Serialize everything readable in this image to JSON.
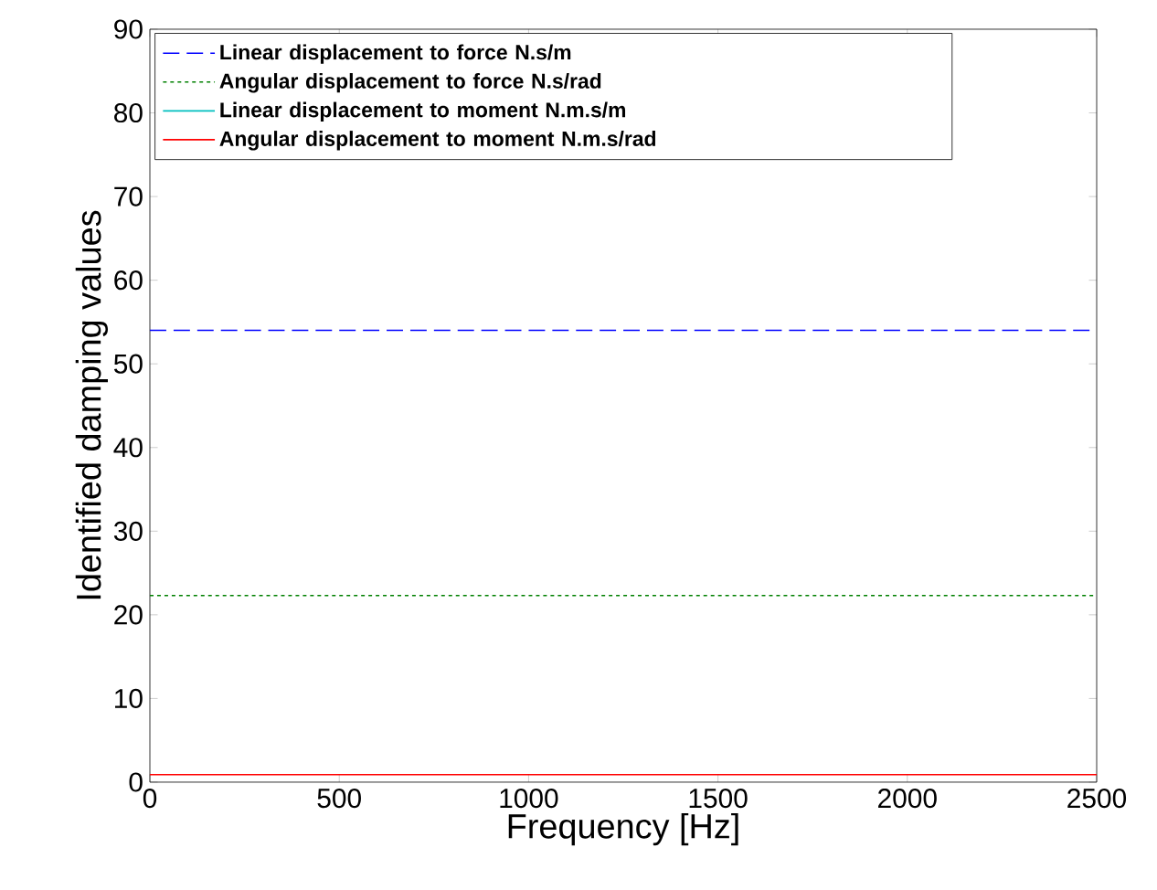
{
  "chart_data": {
    "type": "line",
    "xlabel": "Frequency [Hz]",
    "ylabel": "Identified damping values",
    "x": [
      0,
      2500
    ],
    "series": [
      {
        "name": "Linear displacement to force N.s/m",
        "color": "#0000ff",
        "line_style": "dashed",
        "values": [
          54,
          54
        ]
      },
      {
        "name": "Angular displacement to force N.s/rad",
        "color": "#008000",
        "line_style": "dotted",
        "values": [
          22.3,
          22.3
        ]
      },
      {
        "name": "Linear displacement to moment N.m.s/m",
        "color": "#00bfbf",
        "line_style": "solid",
        "values": [
          null,
          null
        ]
      },
      {
        "name": "Angular displacement to moment N.m.s/rad",
        "color": "#ff0000",
        "line_style": "solid",
        "values": [
          0.9,
          0.9
        ]
      }
    ],
    "xlim": [
      0,
      2500
    ],
    "xticks": [
      0,
      500,
      1000,
      1500,
      2000,
      2500
    ],
    "ylim": [
      0,
      90
    ],
    "yticks": [
      0,
      10,
      20,
      30,
      40,
      50,
      60,
      70,
      80,
      90
    ],
    "legend": "top",
    "grid": false,
    "marker": "none"
  }
}
